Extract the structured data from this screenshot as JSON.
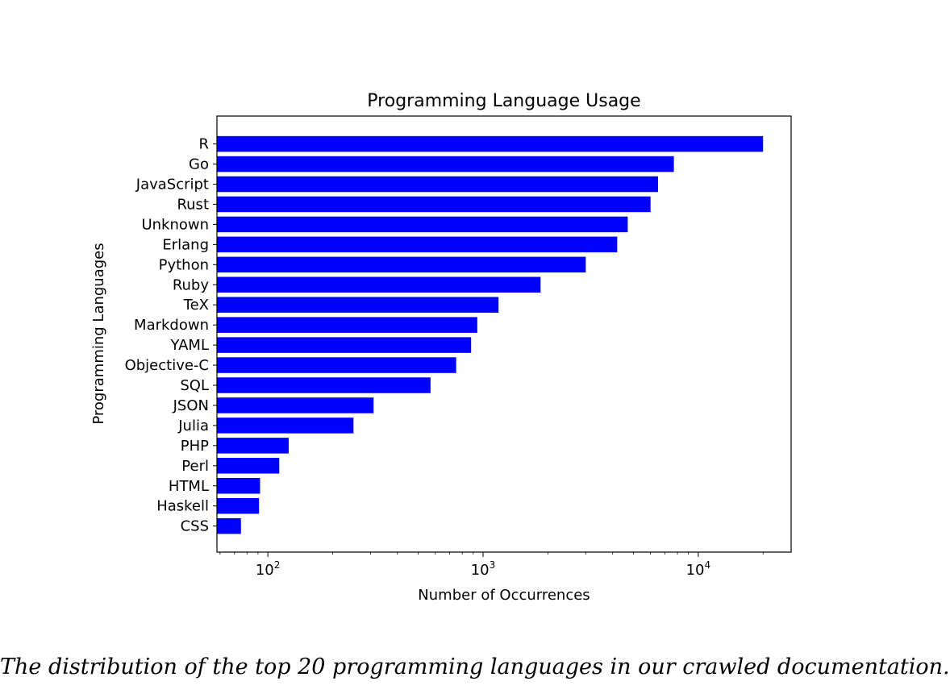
{
  "chart_data": {
    "type": "bar",
    "orientation": "horizontal",
    "title": "Programming Language Usage",
    "xlabel": "Number of Occurrences",
    "ylabel": "Programming Languages",
    "x_scale": "log",
    "xlim": [
      58,
      27000
    ],
    "x_ticks": [
      {
        "value": 100,
        "base": "10",
        "exp": "2"
      },
      {
        "value": 1000,
        "base": "10",
        "exp": "3"
      },
      {
        "value": 10000,
        "base": "10",
        "exp": "4"
      }
    ],
    "bar_color": "#0000ff",
    "grid": false,
    "legend": "none",
    "categories": [
      "R",
      "Go",
      "JavaScript",
      "Rust",
      "Unknown",
      "Erlang",
      "Python",
      "Ruby",
      "TeX",
      "Markdown",
      "YAML",
      "Objective-C",
      "SQL",
      "JSON",
      "Julia",
      "PHP",
      "Perl",
      "HTML",
      "Haskell",
      "CSS"
    ],
    "values": [
      20000,
      7700,
      6500,
      6000,
      4700,
      4200,
      3000,
      1850,
      1180,
      940,
      880,
      750,
      570,
      310,
      250,
      125,
      113,
      92,
      91,
      75
    ]
  },
  "caption": "The distribution of the top 20 programming languages in our crawled documentation."
}
